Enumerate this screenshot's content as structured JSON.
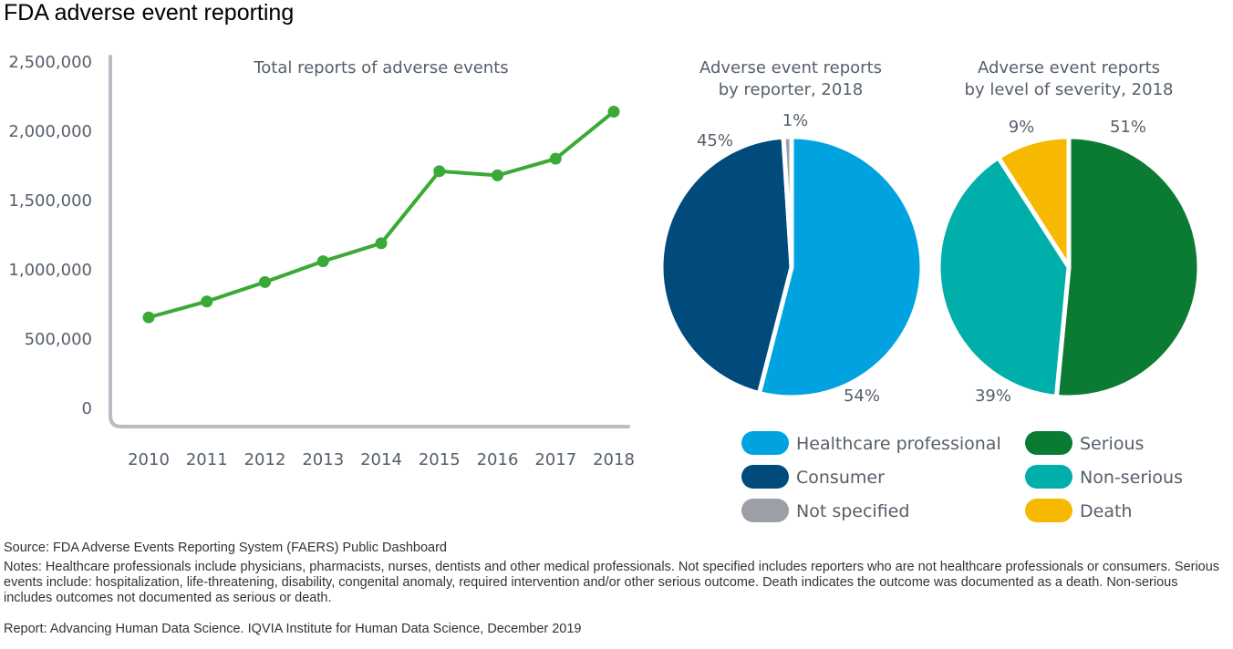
{
  "title": "FDA adverse event reporting",
  "colors": {
    "line": "#3aa935",
    "axis": "#b9bcc2",
    "tick_text": "#555f6a",
    "healthcare": "#00a3e0",
    "consumer": "#004a7c",
    "not_specified": "#9d9fa6",
    "serious": "#0b7b34",
    "non_serious": "#00aeaa",
    "death": "#f6b900"
  },
  "chart_data": [
    {
      "type": "line",
      "title": "Total reports of adverse events",
      "x": [
        "2010",
        "2011",
        "2012",
        "2013",
        "2014",
        "2015",
        "2016",
        "2017",
        "2018"
      ],
      "values": [
        650000,
        765000,
        905000,
        1055000,
        1185000,
        1705000,
        1675000,
        1795000,
        2135000
      ],
      "ylim": [
        0,
        2500000
      ],
      "yticks": [
        "0",
        "500,000",
        "1,000,000",
        "1,500,000",
        "2,000,000",
        "2,500,000"
      ],
      "ytick_values": [
        0,
        500000,
        1000000,
        1500000,
        2000000,
        2500000
      ],
      "grid": false
    },
    {
      "type": "pie",
      "title": "Adverse event reports\nby reporter, 2018",
      "title_lines": [
        "Adverse event reports",
        "by reporter, 2018"
      ],
      "slices": [
        {
          "label": "Healthcare professional",
          "value": 54,
          "text": "54%",
          "color_key": "healthcare"
        },
        {
          "label": "Consumer",
          "value": 45,
          "text": "45%",
          "color_key": "consumer"
        },
        {
          "label": "Not specified",
          "value": 1,
          "text": "1%",
          "color_key": "not_specified"
        }
      ]
    },
    {
      "type": "pie",
      "title": "Adverse event reports\nby level of severity, 2018",
      "title_lines": [
        "Adverse event reports",
        "by level of severity, 2018"
      ],
      "slices": [
        {
          "label": "Serious",
          "value": 51,
          "text": "51%",
          "color_key": "serious"
        },
        {
          "label": "Non-serious",
          "value": 39,
          "text": "39%",
          "color_key": "non_serious"
        },
        {
          "label": "Death",
          "value": 9,
          "text": "9%",
          "color_key": "death"
        }
      ]
    }
  ],
  "legend": {
    "reporter": [
      "Healthcare professional",
      "Consumer",
      "Not specified"
    ],
    "severity": [
      "Serious",
      "Non-serious",
      "Death"
    ]
  },
  "footer": {
    "source": "Source: FDA Adverse Events Reporting System (FAERS) Public Dashboard",
    "notes": "Notes: Healthcare professionals include physicians, pharmacists, nurses, dentists and other medical professionals. Not specified includes reporters who are not healthcare professionals or consumers. Serious events include: hospitalization, life-threatening, disability, congenital anomaly, required intervention and/or other serious outcome. Death indicates the outcome was documented as a death. Non-serious includes outcomes not documented as serious or death.",
    "report": "Report: Advancing Human Data Science. IQVIA Institute for Human Data Science, December 2019"
  }
}
